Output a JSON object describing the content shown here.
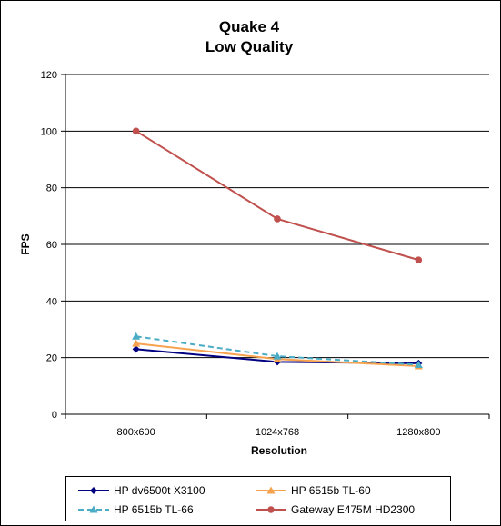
{
  "chart_data": {
    "type": "line",
    "title": [
      "Quake 4",
      "Low Quality"
    ],
    "xlabel": "Resolution",
    "ylabel": "FPS",
    "categories": [
      "800x600",
      "1024x768",
      "1280x800"
    ],
    "ylim": [
      0,
      120
    ],
    "yticks": [
      0,
      20,
      40,
      60,
      80,
      100,
      120
    ],
    "grid": "horizontal",
    "legend_position": "bottom",
    "series": [
      {
        "name": "HP dv6500t  X3100",
        "values": [
          23,
          18.5,
          18
        ],
        "color": "#000080",
        "marker": "diamond",
        "dash": false
      },
      {
        "name": "HP 6515b  TL-60",
        "values": [
          25,
          19.5,
          17
        ],
        "color": "#F7A24F",
        "marker": "triangle",
        "dash": false
      },
      {
        "name": "HP 6515b  TL-66",
        "values": [
          27.5,
          20.5,
          17.5
        ],
        "color": "#4BACC6",
        "marker": "triangle",
        "dash": true
      },
      {
        "name": "Gateway  E475M  HD2300",
        "values": [
          100,
          69,
          54.5
        ],
        "color": "#C0504D",
        "marker": "circle",
        "dash": false
      }
    ]
  }
}
